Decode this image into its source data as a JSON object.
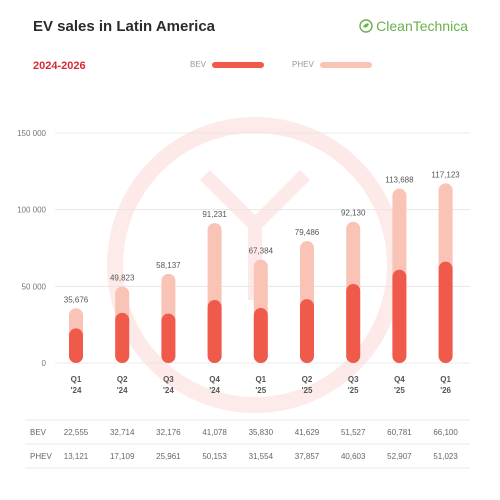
{
  "header": {
    "title": "EV sales in Latin America",
    "subtitle": "2024-2026",
    "brand": "CleanTechnica"
  },
  "colors": {
    "bev": "#f05a4a",
    "phev": "#f9c3b5",
    "subtitle": "#d62b35",
    "brand": "#6ab04c",
    "grid": "#e4e4e4"
  },
  "chart_data": {
    "type": "bar",
    "stacked": true,
    "categories": [
      "Q1\n'24",
      "Q2\n'24",
      "Q3\n'24",
      "Q4\n'24",
      "Q1\n'25",
      "Q2\n'25",
      "Q3\n'25",
      "Q4\n'25",
      "Q1\n'26"
    ],
    "series": [
      {
        "name": "BEV",
        "values": [
          22555,
          32714,
          32176,
          41078,
          35830,
          41629,
          51527,
          60781,
          66100
        ]
      },
      {
        "name": "PHEV",
        "values": [
          13121,
          17109,
          25961,
          50153,
          31554,
          37857,
          40603,
          52907,
          51023
        ]
      }
    ],
    "totals": [
      35676,
      49823,
      58137,
      91231,
      67384,
      79486,
      92130,
      113688,
      117123
    ],
    "total_labels": [
      "35,676",
      "49,823",
      "58,137",
      "91,231",
      "67,384",
      "79,486",
      "92,130",
      "113,688",
      "117,123"
    ],
    "table": {
      "BEV": [
        "22,555",
        "32,714",
        "32,176",
        "41,078",
        "35,830",
        "41,629",
        "51,527",
        "60,781",
        "66,100"
      ],
      "PHEV": [
        "13,121",
        "17,109",
        "25,961",
        "50,153",
        "31,554",
        "37,857",
        "40,603",
        "52,907",
        "51,023"
      ]
    },
    "yticks": [
      0,
      50000,
      100000,
      150000
    ],
    "ytick_labels": [
      "0",
      "50 000",
      "100 000",
      "150 000"
    ],
    "ylim": [
      0,
      150000
    ],
    "grid": true,
    "legend": "top-center"
  }
}
